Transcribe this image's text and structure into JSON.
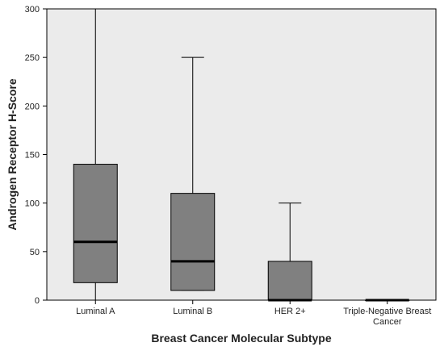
{
  "chart_data": {
    "type": "box",
    "xlabel": "Breast Cancer Molecular Subtype",
    "ylabel": "Androgen Receptor H-Score",
    "ylim": [
      0,
      300
    ],
    "yticks": [
      0,
      50,
      100,
      150,
      200,
      250,
      300
    ],
    "grid": false,
    "categories": [
      {
        "label_lines": [
          "Luminal A"
        ]
      },
      {
        "label_lines": [
          "Luminal B"
        ]
      },
      {
        "label_lines": [
          "HER 2+"
        ]
      },
      {
        "label_lines": [
          "Triple-Negative Breast",
          "Cancer"
        ]
      }
    ],
    "boxes": [
      {
        "min": 0,
        "q1": 18,
        "median": 60,
        "q3": 140,
        "max": 300
      },
      {
        "min": 10,
        "q1": 10,
        "median": 40,
        "q3": 110,
        "max": 250
      },
      {
        "min": 0,
        "q1": 0,
        "median": 0,
        "q3": 40,
        "max": 100
      },
      {
        "min": 0,
        "q1": 0,
        "median": 0,
        "q3": 0,
        "max": 0
      }
    ],
    "colors": {
      "plot_background": "#ebebeb",
      "box_fill": "#808080",
      "line": "#000000"
    }
  }
}
